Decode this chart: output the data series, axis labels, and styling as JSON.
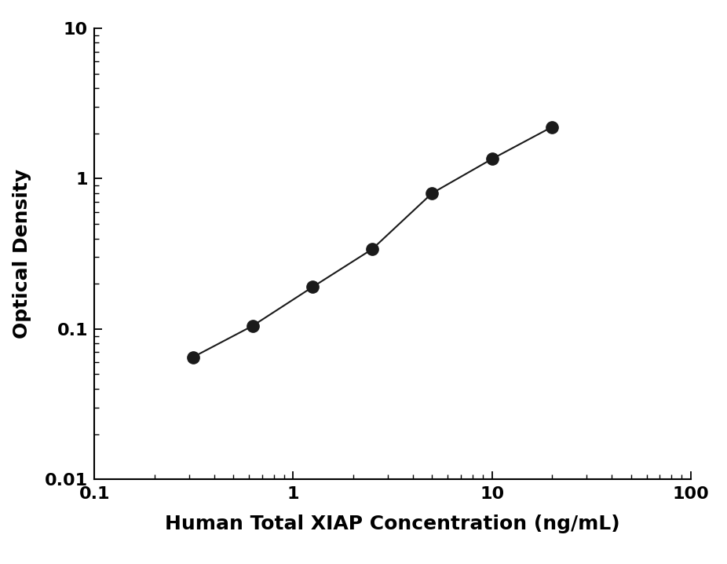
{
  "x": [
    0.313,
    0.625,
    1.25,
    2.5,
    5.0,
    10.0,
    20.0
  ],
  "y": [
    0.065,
    0.105,
    0.19,
    0.34,
    0.8,
    1.35,
    2.2
  ],
  "xlim": [
    0.1,
    100
  ],
  "ylim": [
    0.01,
    10
  ],
  "xlabel": "Human Total XIAP Concentration (ng/mL)",
  "ylabel": "Optical Density",
  "line_color": "#1a1a1a",
  "marker_color": "#1a1a1a",
  "marker_size": 11,
  "line_width": 1.5,
  "xlabel_fontsize": 18,
  "ylabel_fontsize": 18,
  "tick_fontsize": 16,
  "background_color": "#ffffff"
}
